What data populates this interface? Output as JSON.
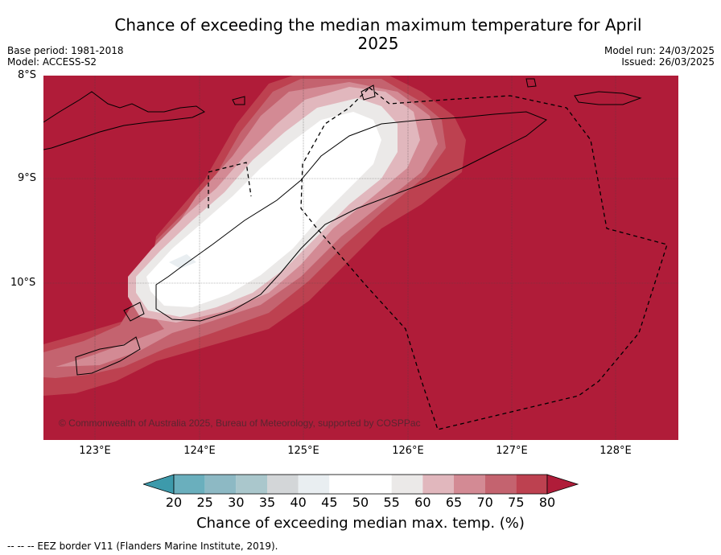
{
  "title": "Chance of exceeding the median maximum temperature for April 2025",
  "meta_left": {
    "base_period": "Base period: 1981-2018",
    "model": "Model: ACCESS-S2"
  },
  "meta_right": {
    "model_run": "Model run: 24/03/2025",
    "issued": "Issued: 26/03/2025"
  },
  "map": {
    "lat_labels": [
      "8°S",
      "9°S",
      "10°S"
    ],
    "lon_labels": [
      "123°E",
      "124°E",
      "125°E",
      "126°E",
      "127°E",
      "128°E"
    ],
    "copyright": "© Commonwealth of Australia 2025, Bureau of Meteorology, supported by COSPPac",
    "background_color": "#b01c39"
  },
  "colorbar": {
    "ticks": [
      "20",
      "25",
      "30",
      "35",
      "40",
      "45",
      "50",
      "55",
      "60",
      "65",
      "70",
      "75",
      "80"
    ],
    "colors": [
      "#3d9aab",
      "#6aafbd",
      "#8db9c4",
      "#aac7cc",
      "#d3d6d8",
      "#e9eef1",
      "#ffffff",
      "#ffffff",
      "#ebe9e8",
      "#e1b7bd",
      "#d38a94",
      "#c4636f",
      "#bd4150",
      "#b01c39"
    ],
    "title": "Chance of exceeding median max. temp. (%)"
  },
  "footnote": "--  --  -- EEZ border V11 (Flanders Marine Institute, 2019)."
}
